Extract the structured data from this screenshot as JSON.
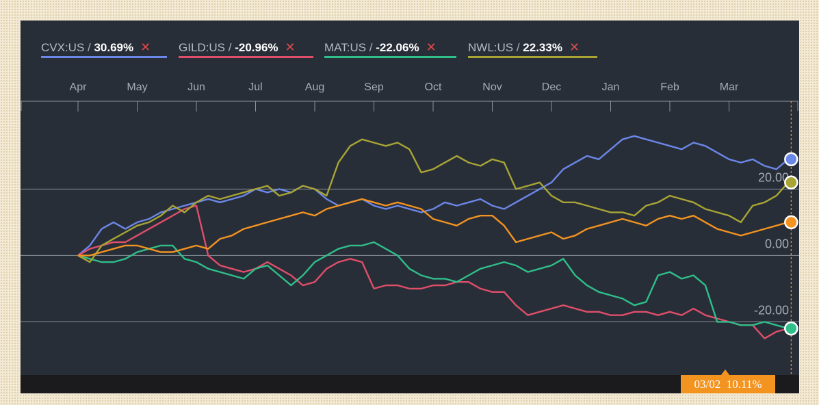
{
  "legend": [
    {
      "ticker": "CVX:US",
      "sep": " / ",
      "change": "30.69%",
      "color": "#6b87e8",
      "remove": "✕"
    },
    {
      "ticker": "GILD:US",
      "sep": " / ",
      "change": "-20.96%",
      "color": "#e04e6a",
      "remove": "✕"
    },
    {
      "ticker": "MAT:US",
      "sep": " / ",
      "change": "-22.06%",
      "color": "#2fbf8a",
      "remove": "✕"
    },
    {
      "ticker": "NWL:US",
      "sep": " / ",
      "change": "22.33%",
      "color": "#a8a535",
      "remove": "✕"
    }
  ],
  "readout": {
    "date": "03/02",
    "value": "10.11%"
  },
  "chart_data": {
    "type": "line",
    "x_ticks": [
      "Apr",
      "May",
      "Jun",
      "Jul",
      "Aug",
      "Sep",
      "Oct",
      "Nov",
      "Dec",
      "Jan",
      "Feb",
      "Mar"
    ],
    "y_ticks": [
      {
        "value": 20,
        "label": "20.00"
      },
      {
        "value": 0,
        "label": "0.00"
      },
      {
        "value": -20,
        "label": "-20.00"
      }
    ],
    "ylim": [
      -36,
      44
    ],
    "grid": true,
    "legend_position": "top-left",
    "x_domain": [
      0,
      12.3
    ],
    "cursor_x": 12.05,
    "series": [
      {
        "name": "CVX:US",
        "color": "#6b87e8",
        "x": [
          0,
          0.2,
          0.4,
          0.6,
          0.8,
          1.0,
          1.2,
          1.4,
          1.6,
          1.8,
          2.0,
          2.2,
          2.4,
          2.6,
          2.8,
          3.0,
          3.2,
          3.4,
          3.6,
          3.8,
          4.0,
          4.2,
          4.4,
          4.6,
          4.8,
          5.0,
          5.2,
          5.4,
          5.6,
          5.8,
          6.0,
          6.2,
          6.4,
          6.6,
          6.8,
          7.0,
          7.2,
          7.4,
          7.6,
          7.8,
          8.0,
          8.2,
          8.4,
          8.6,
          8.8,
          9.0,
          9.2,
          9.4,
          9.6,
          9.8,
          10.0,
          10.2,
          10.4,
          10.6,
          10.8,
          11.0,
          11.2,
          11.4,
          11.6,
          11.8,
          12.0
        ],
        "y": [
          0,
          3,
          8,
          10,
          8,
          10,
          11,
          13,
          14,
          15,
          16,
          17,
          16,
          17,
          18,
          20,
          19,
          20,
          19,
          21,
          20,
          17,
          15,
          16,
          17,
          15,
          14,
          15,
          14,
          13,
          14,
          16,
          15,
          16,
          17,
          15,
          14,
          16,
          18,
          20,
          22,
          26,
          28,
          30,
          29,
          32,
          35,
          36,
          35,
          34,
          33,
          32,
          34,
          33,
          31,
          29,
          28,
          29,
          27,
          26,
          29
        ]
      },
      {
        "name": "GILD:US",
        "color": "#e04e6a",
        "x": [
          0,
          0.2,
          0.4,
          0.6,
          0.8,
          1.0,
          1.2,
          1.4,
          1.6,
          1.8,
          2.0,
          2.2,
          2.4,
          2.6,
          2.8,
          3.0,
          3.2,
          3.4,
          3.6,
          3.8,
          4.0,
          4.2,
          4.4,
          4.6,
          4.8,
          5.0,
          5.2,
          5.4,
          5.6,
          5.8,
          6.0,
          6.2,
          6.4,
          6.6,
          6.8,
          7.0,
          7.2,
          7.4,
          7.6,
          7.8,
          8.0,
          8.2,
          8.4,
          8.6,
          8.8,
          9.0,
          9.2,
          9.4,
          9.6,
          9.8,
          10.0,
          10.2,
          10.4,
          10.6,
          10.8,
          11.0,
          11.2,
          11.4,
          11.6,
          11.8,
          12.0
        ],
        "y": [
          0,
          2,
          3,
          4,
          4,
          6,
          8,
          10,
          12,
          14,
          15,
          0,
          -3,
          -4,
          -5,
          -4,
          -2,
          -4,
          -6,
          -9,
          -8,
          -4,
          -2,
          -1,
          -2,
          -10,
          -9,
          -9,
          -10,
          -10,
          -9,
          -9,
          -8,
          -8,
          -10,
          -11,
          -11,
          -15,
          -18,
          -17,
          -16,
          -15,
          -16,
          -17,
          -17,
          -18,
          -18,
          -17,
          -17,
          -18,
          -17,
          -18,
          -16,
          -18,
          -19,
          -20,
          -21,
          -21,
          -25,
          -23,
          -22
        ]
      },
      {
        "name": "MAT:US",
        "color": "#2fbf8a",
        "x": [
          0,
          0.2,
          0.4,
          0.6,
          0.8,
          1.0,
          1.2,
          1.4,
          1.6,
          1.8,
          2.0,
          2.2,
          2.4,
          2.6,
          2.8,
          3.0,
          3.2,
          3.4,
          3.6,
          3.8,
          4.0,
          4.2,
          4.4,
          4.6,
          4.8,
          5.0,
          5.2,
          5.4,
          5.6,
          5.8,
          6.0,
          6.2,
          6.4,
          6.6,
          6.8,
          7.0,
          7.2,
          7.4,
          7.6,
          7.8,
          8.0,
          8.2,
          8.4,
          8.6,
          8.8,
          9.0,
          9.2,
          9.4,
          9.6,
          9.8,
          10.0,
          10.2,
          10.4,
          10.6,
          10.8,
          11.0,
          11.2,
          11.4,
          11.6,
          11.8,
          12.0
        ],
        "y": [
          0,
          -1,
          -2,
          -2,
          -1,
          1,
          2,
          3,
          3,
          -1,
          -2,
          -4,
          -5,
          -6,
          -7,
          -4,
          -3,
          -6,
          -9,
          -6,
          -2,
          0,
          2,
          3,
          3,
          4,
          2,
          0,
          -4,
          -6,
          -7,
          -7,
          -8,
          -6,
          -4,
          -3,
          -2,
          -3,
          -5,
          -4,
          -3,
          -1,
          -6,
          -9,
          -11,
          -12,
          -13,
          -15,
          -14,
          -6,
          -5,
          -7,
          -6,
          -9,
          -20,
          -20,
          -21,
          -21,
          -20,
          -21,
          -22
        ]
      },
      {
        "name": "NWL:US",
        "color": "#a8a535",
        "x": [
          0,
          0.2,
          0.4,
          0.6,
          0.8,
          1.0,
          1.2,
          1.4,
          1.6,
          1.8,
          2.0,
          2.2,
          2.4,
          2.6,
          2.8,
          3.0,
          3.2,
          3.4,
          3.6,
          3.8,
          4.0,
          4.2,
          4.4,
          4.6,
          4.8,
          5.0,
          5.2,
          5.4,
          5.6,
          5.8,
          6.0,
          6.2,
          6.4,
          6.6,
          6.8,
          7.0,
          7.2,
          7.4,
          7.6,
          7.8,
          8.0,
          8.2,
          8.4,
          8.6,
          8.8,
          9.0,
          9.2,
          9.4,
          9.6,
          9.8,
          10.0,
          10.2,
          10.4,
          10.6,
          10.8,
          11.0,
          11.2,
          11.4,
          11.6,
          11.8,
          12.0
        ],
        "y": [
          0,
          -2,
          3,
          5,
          7,
          9,
          10,
          12,
          15,
          13,
          16,
          18,
          17,
          18,
          19,
          20,
          21,
          18,
          19,
          21,
          20,
          18,
          28,
          33,
          35,
          34,
          33,
          34,
          32,
          25,
          26,
          28,
          30,
          28,
          27,
          29,
          28,
          20,
          21,
          22,
          18,
          16,
          16,
          15,
          14,
          13,
          13,
          12,
          15,
          16,
          18,
          17,
          16,
          14,
          13,
          12,
          10,
          15,
          16,
          18,
          22
        ]
      },
      {
        "name": "",
        "color": "#f39320",
        "x": [
          0,
          0.2,
          0.4,
          0.6,
          0.8,
          1.0,
          1.2,
          1.4,
          1.6,
          1.8,
          2.0,
          2.2,
          2.4,
          2.6,
          2.8,
          3.0,
          3.2,
          3.4,
          3.6,
          3.8,
          4.0,
          4.2,
          4.4,
          4.6,
          4.8,
          5.0,
          5.2,
          5.4,
          5.6,
          5.8,
          6.0,
          6.2,
          6.4,
          6.6,
          6.8,
          7.0,
          7.2,
          7.4,
          7.6,
          7.8,
          8.0,
          8.2,
          8.4,
          8.6,
          8.8,
          9.0,
          9.2,
          9.4,
          9.6,
          9.8,
          10.0,
          10.2,
          10.4,
          10.6,
          10.8,
          11.0,
          11.2,
          11.4,
          11.6,
          11.8,
          12.0
        ],
        "y": [
          0,
          0,
          1,
          2,
          3,
          3,
          2,
          1,
          1,
          2,
          3,
          2,
          5,
          6,
          8,
          9,
          10,
          11,
          12,
          13,
          12,
          14,
          15,
          16,
          17,
          16,
          15,
          16,
          15,
          14,
          11,
          10,
          9,
          11,
          12,
          12,
          9,
          4,
          5,
          6,
          7,
          5,
          6,
          8,
          9,
          10,
          11,
          10,
          9,
          11,
          12,
          11,
          12,
          10,
          8,
          7,
          6,
          7,
          8,
          9,
          10
        ]
      }
    ]
  }
}
